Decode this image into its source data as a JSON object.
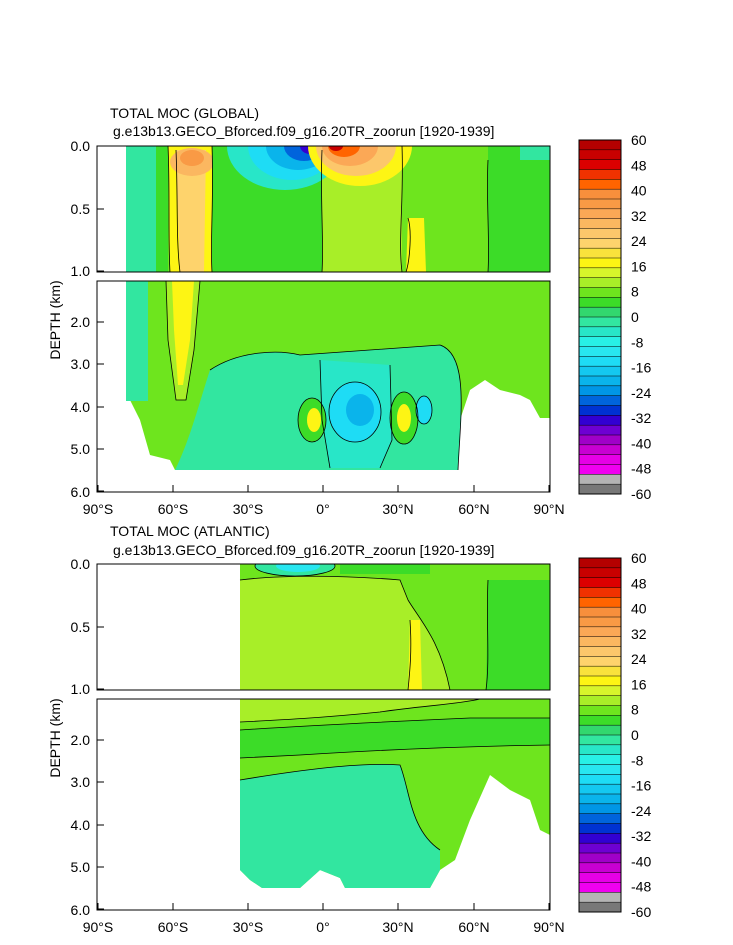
{
  "chart_data": [
    {
      "type": "heatmap",
      "title": "TOTAL MOC (GLOBAL)",
      "subtitle": "g.e13b13.GECO_Bforced.f09_g16.20TR_zoorun [1920-1939]",
      "ylabel": "DEPTH (km)",
      "x_ticks": [
        "90°S",
        "60°S",
        "30°S",
        "0°",
        "30°N",
        "60°N",
        "90°N"
      ],
      "y_ticks_upper": [
        "0.0",
        "0.5",
        "1.0"
      ],
      "y_ticks_lower": [
        "2.0",
        "3.0",
        "4.0",
        "5.0",
        "6.0"
      ],
      "xlim": [
        -90,
        90
      ],
      "ylim_upper": [
        0,
        1
      ],
      "ylim_lower": [
        1,
        6
      ],
      "regions": [
        {
          "name": "background",
          "value": 4
        },
        {
          "name": "southern-cell",
          "value": 14,
          "x": [
            -56,
            -44
          ],
          "y": [
            0,
            3.2
          ]
        },
        {
          "name": "southern-core",
          "value": 18,
          "x": [
            -53,
            -46
          ],
          "y": [
            0.05,
            2.6
          ]
        },
        {
          "name": "southern-shallow",
          "value": 26,
          "x": [
            -55,
            -41
          ],
          "y": [
            0,
            0.15
          ]
        },
        {
          "name": "tropical-south",
          "value": -40,
          "x": [
            -20,
            -2
          ],
          "y": [
            0,
            0.12
          ]
        },
        {
          "name": "tropical-north",
          "value": 34,
          "x": [
            3,
            22
          ],
          "y": [
            0,
            0.12
          ]
        },
        {
          "name": "abyssal-cell",
          "value": -6,
          "x": [
            -35,
            60
          ],
          "y": [
            2.7,
            5.5
          ]
        },
        {
          "name": "abyssal-core",
          "value": -12,
          "x": [
            5,
            30
          ],
          "y": [
            3.3,
            4.8
          ]
        },
        {
          "name": "abyssal-pos-1",
          "value": 15,
          "x": [
            -4,
            0
          ],
          "y": [
            3.8,
            4.7
          ]
        },
        {
          "name": "abyssal-pos-2",
          "value": 16,
          "x": [
            28,
            34
          ],
          "y": [
            3.8,
            4.8
          ]
        },
        {
          "name": "north-shallow",
          "value": 13,
          "x": [
            30,
            36
          ],
          "y": [
            0.6,
            1.0
          ]
        }
      ]
    },
    {
      "type": "heatmap",
      "title": "TOTAL MOC (ATLANTIC)",
      "subtitle": "g.e13b13.GECO_Bforced.f09_g16.20TR_zoorun [1920-1939]",
      "ylabel": "DEPTH (km)",
      "x_ticks": [
        "90°S",
        "60°S",
        "30°S",
        "0°",
        "30°N",
        "60°N",
        "90°N"
      ],
      "y_ticks_upper": [
        "0.0",
        "0.5",
        "1.0"
      ],
      "y_ticks_lower": [
        "2.0",
        "3.0",
        "4.0",
        "5.0",
        "6.0"
      ],
      "xlim": [
        -90,
        90
      ],
      "ylim_upper": [
        0,
        1
      ],
      "ylim_lower": [
        1,
        6
      ],
      "regions": [
        {
          "name": "overturning-upper",
          "value": 10,
          "x": [
            -34,
            55
          ],
          "y": [
            0,
            1.5
          ]
        },
        {
          "name": "overturning-core",
          "value": 14,
          "x": [
            33,
            36
          ],
          "y": [
            0.5,
            1.0
          ]
        },
        {
          "name": "nadw-layer",
          "value": 6,
          "x": [
            -34,
            90
          ],
          "y": [
            1.5,
            2.4
          ]
        },
        {
          "name": "aabw-cell",
          "value": -4,
          "x": [
            -34,
            60
          ],
          "y": [
            2.5,
            5.5
          ]
        },
        {
          "name": "surface-south",
          "value": -6,
          "x": [
            -25,
            0
          ],
          "y": [
            0,
            0.12
          ]
        }
      ]
    }
  ],
  "colorbar": {
    "labels": [
      "60",
      "48",
      "40",
      "32",
      "24",
      "16",
      "8",
      "0",
      "-8",
      "-16",
      "-24",
      "-32",
      "-40",
      "-48",
      "-60"
    ],
    "colors": [
      "#b40000",
      "#c80000",
      "#dc0000",
      "#f03200",
      "#ff6400",
      "#f78f3c",
      "#f99a45",
      "#fba856",
      "#fbb760",
      "#fcc76b",
      "#fed36c",
      "#f9e23c",
      "#fdf514",
      "#d7f52b",
      "#a8ee28",
      "#6ee51e",
      "#3cdc28",
      "#32d76e",
      "#32e6a0",
      "#28e6c8",
      "#28f0e6",
      "#28e6f0",
      "#1edcf5",
      "#14c8f0",
      "#0ab4eb",
      "#0096e6",
      "#0064dc",
      "#0032d2",
      "#3200d2",
      "#6e00d2",
      "#a000c8",
      "#c800d2",
      "#e600e6",
      "#f000f0",
      "#b4b4b4",
      "#787878"
    ]
  }
}
